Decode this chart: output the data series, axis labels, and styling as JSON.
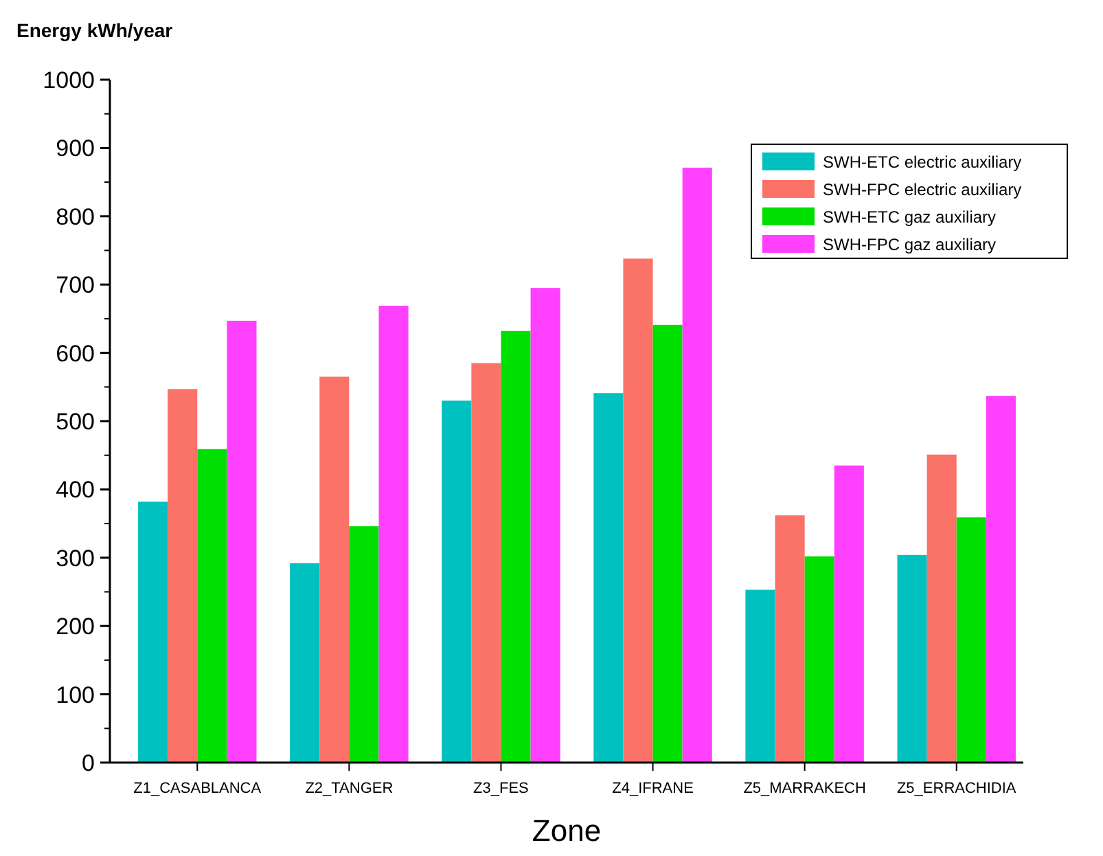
{
  "chart_data": {
    "type": "bar",
    "title": "Energy kWh/year",
    "xlabel": "Zone",
    "categories": [
      "Z1_CASABLANCA",
      "Z2_TANGER",
      "Z3_FES",
      "Z4_IFRANE",
      "Z5_MARRAKECH",
      "Z5_ERRACHIDIA"
    ],
    "series": [
      {
        "name": "SWH-ETC electric auxiliary",
        "color": "#00c0c0",
        "values": [
          382,
          292,
          530,
          541,
          253,
          304
        ]
      },
      {
        "name": "SWH-FPC electric auxiliary",
        "color": "#fa7268",
        "values": [
          547,
          565,
          585,
          738,
          362,
          451
        ]
      },
      {
        "name": "SWH-ETC gaz auxiliary",
        "color": "#00e000",
        "values": [
          459,
          346,
          632,
          641,
          302,
          359
        ]
      },
      {
        "name": "SWH-FPC gaz auxiliary",
        "color": "#ff40ff",
        "values": [
          647,
          669,
          695,
          871,
          435,
          537
        ]
      }
    ],
    "ylim": [
      0,
      1000
    ],
    "yticks": [
      0,
      100,
      200,
      300,
      400,
      500,
      600,
      700,
      800,
      900,
      1000
    ],
    "grid": false,
    "legend": "top right"
  }
}
